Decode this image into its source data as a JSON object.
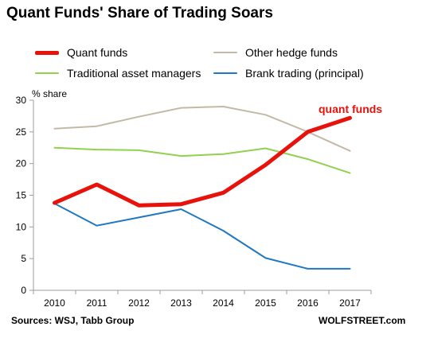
{
  "chart_data": {
    "type": "line",
    "title": "Quant Funds' Share of Trading Soars",
    "ylabel": "% share",
    "xlabel": "",
    "ylim": [
      0,
      30
    ],
    "yticks": [
      0,
      5,
      10,
      15,
      20,
      25,
      30
    ],
    "grid": false,
    "legend_position": "top",
    "categories": [
      "2010",
      "2011",
      "2012",
      "2013",
      "2014",
      "2015",
      "2016",
      "2017"
    ],
    "series": [
      {
        "name": "Quant funds",
        "color": "#e8120c",
        "values": [
          13.8,
          16.7,
          13.4,
          13.6,
          15.4,
          19.8,
          25.0,
          27.2
        ]
      },
      {
        "name": "Other hedge funds",
        "color": "#c4b9a7",
        "values": [
          25.5,
          25.9,
          27.4,
          28.8,
          29.0,
          27.7,
          25.0,
          22.0
        ]
      },
      {
        "name": "Traditional asset managers",
        "color": "#92d050",
        "values": [
          22.5,
          22.2,
          22.1,
          21.2,
          21.5,
          22.4,
          20.7,
          18.5
        ]
      },
      {
        "name": "Brank trading (principal)",
        "color": "#1f78c1",
        "values": [
          13.7,
          10.2,
          11.5,
          12.8,
          9.4,
          5.1,
          3.4,
          3.4
        ]
      }
    ],
    "annotation": {
      "text": "quant funds",
      "color": "#e8120c"
    }
  },
  "footer": {
    "source": "Sources: WSJ, Tabb Group",
    "credit": "WOLFSTREET.com"
  }
}
